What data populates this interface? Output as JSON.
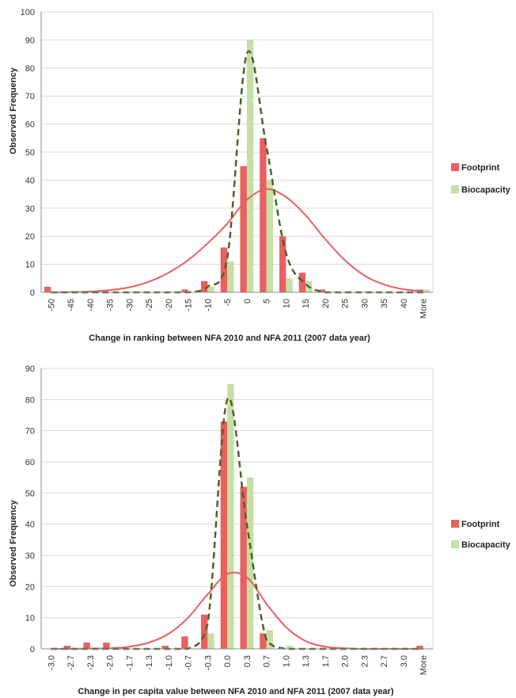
{
  "charts": [
    {
      "ylabel": "Observed Frequency",
      "xlabel": "Change in ranking between NFA 2010 and NFA 2011 (2007 data year)",
      "legend": [
        {
          "label": "Footprint",
          "color": "#e8605f"
        },
        {
          "label": "Biocapacity",
          "color": "#c6dfa4"
        }
      ]
    },
    {
      "ylabel": "Observed Frequency",
      "xlabel": "Change in per capita value between NFA 2010 and NFA 2011 (2007 data year)",
      "legend": [
        {
          "label": "Footprint",
          "color": "#e8605f"
        },
        {
          "label": "Biocapacity",
          "color": "#c6dfa4"
        }
      ]
    }
  ],
  "chart_data": [
    {
      "type": "bar",
      "categories": [
        "-50",
        "-45",
        "-40",
        "-35",
        "-30",
        "-25",
        "-20",
        "-15",
        "-10",
        "-5",
        "0",
        "5",
        "10",
        "15",
        "20",
        "25",
        "30",
        "35",
        "40",
        "More"
      ],
      "series": [
        {
          "name": "Footprint",
          "color": "#e8605f",
          "values": [
            2,
            0,
            0,
            0,
            0,
            0,
            0,
            1,
            4,
            16,
            45,
            55,
            20,
            7,
            1,
            0,
            0,
            0,
            0,
            1
          ]
        },
        {
          "name": "Biocapacity",
          "color": "#c6dfa4",
          "values": [
            0,
            0,
            0,
            0,
            0,
            0,
            0,
            0,
            2,
            11,
            90,
            40,
            5,
            4,
            0,
            0,
            0,
            0,
            0,
            1
          ]
        }
      ],
      "curves": [
        {
          "style": "solid",
          "color": "#e8605f",
          "values": [
            0.0,
            0.1,
            0.3,
            0.8,
            1.8,
            3.8,
            7.0,
            11.5,
            17.5,
            24.5,
            33.0,
            36.8,
            34.0,
            27.5,
            19.0,
            11.5,
            6.0,
            2.8,
            1.1,
            0.4
          ]
        },
        {
          "style": "dashed",
          "color": "#4f6228",
          "values": [
            0,
            0,
            0,
            0,
            0,
            0,
            0,
            0,
            2,
            12,
            85,
            52,
            14,
            3,
            0,
            0,
            0,
            0,
            0,
            0
          ]
        }
      ],
      "ylim": [
        0,
        100
      ],
      "yticks": [
        0,
        10,
        20,
        30,
        40,
        50,
        60,
        70,
        80,
        90,
        100
      ],
      "grid": true,
      "legend_position": "right"
    },
    {
      "type": "bar",
      "categories": [
        "-3.0",
        "-2.7",
        "-2.3",
        "-2.0",
        "-1.7",
        "-1.3",
        "-1.0",
        "-0.7",
        "-0.3",
        "0.0",
        "0.3",
        "0.7",
        "1.0",
        "1.3",
        "1.7",
        "2.0",
        "2.3",
        "2.7",
        "3.0",
        "More"
      ],
      "series": [
        {
          "name": "Footprint",
          "color": "#e8605f",
          "values": [
            0,
            1,
            2,
            2,
            0,
            0,
            1,
            4,
            11,
            73,
            52,
            5,
            0,
            0,
            0,
            0,
            0,
            0,
            0,
            1
          ]
        },
        {
          "name": "Biocapacity",
          "color": "#c6dfa4",
          "values": [
            0,
            0,
            0,
            0,
            0,
            0,
            0,
            0,
            5,
            85,
            55,
            6,
            1,
            0,
            0,
            0,
            0,
            0,
            0,
            0
          ]
        }
      ],
      "curves": [
        {
          "style": "solid",
          "color": "#e8605f",
          "values": [
            0.0,
            0.0,
            0.1,
            0.2,
            0.7,
            2.0,
            4.8,
            10.0,
            17.5,
            24.0,
            23.0,
            14.5,
            7.0,
            2.5,
            0.7,
            0.2,
            0.0,
            0.0,
            0.0,
            0.0
          ]
        },
        {
          "style": "dashed",
          "color": "#4f6228",
          "values": [
            0,
            0,
            0,
            0,
            0,
            0,
            0,
            0,
            8,
            80,
            40,
            3,
            0,
            0,
            0,
            0,
            0,
            0,
            0,
            0
          ]
        }
      ],
      "ylim": [
        0,
        90
      ],
      "yticks": [
        0,
        10,
        20,
        30,
        40,
        50,
        60,
        70,
        80,
        90
      ],
      "grid": true,
      "legend_position": "right"
    }
  ]
}
